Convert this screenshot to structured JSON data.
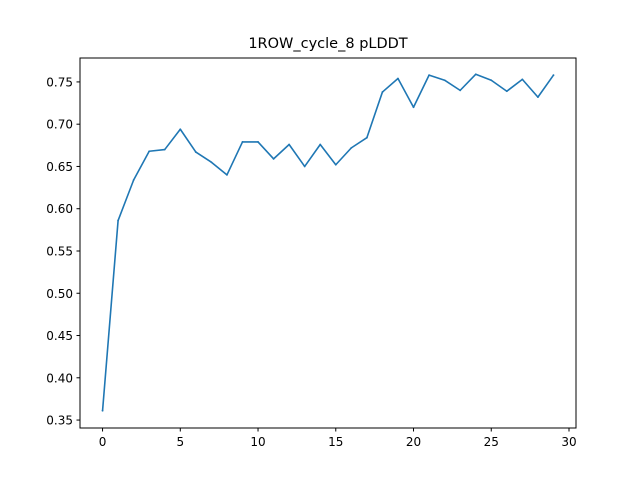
{
  "chart_data": {
    "type": "line",
    "title": "1ROW_cycle_8 pLDDT",
    "xlabel": "",
    "ylabel": "",
    "xlim": [
      -1.45,
      30.45
    ],
    "ylim": [
      0.3406,
      0.7783
    ],
    "x_ticks": [
      0,
      5,
      10,
      15,
      20,
      25,
      30
    ],
    "x_tick_labels": [
      "0",
      "5",
      "10",
      "15",
      "20",
      "25",
      "30"
    ],
    "y_ticks": [
      0.35,
      0.4,
      0.45,
      0.5,
      0.55,
      0.6,
      0.65,
      0.7,
      0.75
    ],
    "y_tick_labels": [
      "0.35",
      "0.40",
      "0.45",
      "0.50",
      "0.55",
      "0.60",
      "0.65",
      "0.70",
      "0.75"
    ],
    "grid": false,
    "legend": "none",
    "series": [
      {
        "color": "#1f77b4",
        "x": [
          0,
          1,
          2,
          3,
          4,
          5,
          6,
          7,
          8,
          9,
          10,
          11,
          12,
          13,
          14,
          15,
          16,
          17,
          18,
          19,
          20,
          21,
          22,
          23,
          24,
          25,
          26,
          27,
          28,
          29
        ],
        "values": [
          0.361,
          0.586,
          0.634,
          0.668,
          0.67,
          0.694,
          0.667,
          0.655,
          0.64,
          0.679,
          0.679,
          0.659,
          0.676,
          0.65,
          0.676,
          0.652,
          0.672,
          0.684,
          0.738,
          0.754,
          0.72,
          0.758,
          0.752,
          0.74,
          0.759,
          0.752,
          0.739,
          0.753,
          0.732,
          0.758
        ]
      }
    ]
  }
}
